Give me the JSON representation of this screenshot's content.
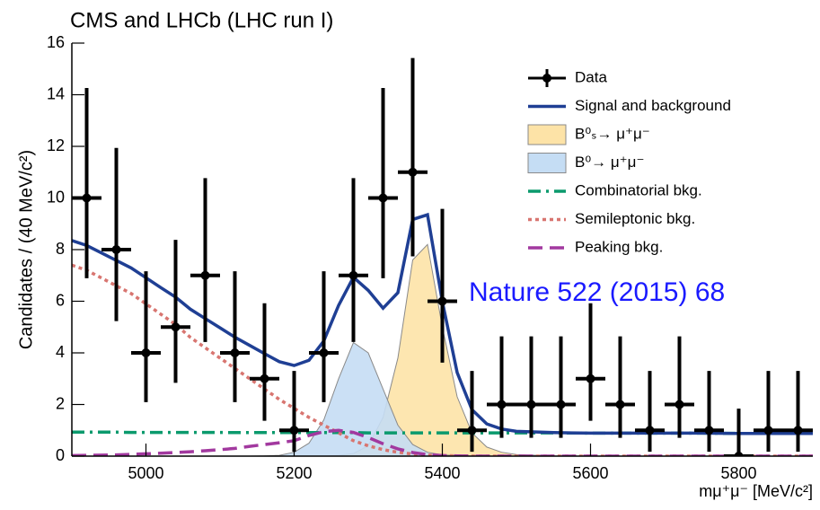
{
  "chart_data": {
    "type": "line",
    "title": "CMS and LHCb (LHC run I)",
    "annotation": "Nature 522 (2015) 68",
    "x_label": "mμ⁺μ⁻ [MeV/c²]",
    "y_label": "Candidates / (40 MeV/c²)",
    "xlim": [
      4900,
      5900
    ],
    "xticks": [
      5000,
      5200,
      5400,
      5600,
      5800
    ],
    "ylim": [
      0,
      16
    ],
    "yticks": [
      0,
      2,
      4,
      6,
      8,
      10,
      12,
      14,
      16
    ],
    "legend": "upper right",
    "data": {
      "name": "Data",
      "color": "#000000",
      "xerr": 20,
      "x": [
        4920,
        4960,
        5000,
        5040,
        5080,
        5120,
        5160,
        5200,
        5240,
        5280,
        5320,
        5360,
        5400,
        5440,
        5480,
        5520,
        5560,
        5600,
        5640,
        5680,
        5720,
        5760,
        5800,
        5840,
        5880
      ],
      "values": [
        10,
        8,
        4,
        5,
        7,
        4,
        3,
        1,
        4,
        7,
        10,
        11,
        6,
        1,
        2,
        2,
        2,
        3,
        2,
        1,
        2,
        1,
        0,
        1,
        1
      ],
      "err_low": [
        3.11,
        2.77,
        1.91,
        2.16,
        2.58,
        1.91,
        1.63,
        0.83,
        1.91,
        2.58,
        3.11,
        3.26,
        2.38,
        0.83,
        1.29,
        1.29,
        1.29,
        1.63,
        1.29,
        0.83,
        1.29,
        0.83,
        0,
        0.83,
        0.83
      ],
      "err_high": [
        4.26,
        3.94,
        3.16,
        3.38,
        3.77,
        3.16,
        2.92,
        2.3,
        3.16,
        3.77,
        4.26,
        4.42,
        3.58,
        2.3,
        2.64,
        2.64,
        2.64,
        2.92,
        2.64,
        2.3,
        2.64,
        2.3,
        1.84,
        2.3,
        2.3
      ]
    },
    "x": [
      4900,
      4920,
      4940,
      4960,
      4980,
      5000,
      5020,
      5040,
      5060,
      5080,
      5100,
      5120,
      5140,
      5160,
      5180,
      5200,
      5220,
      5240,
      5260,
      5280,
      5300,
      5320,
      5340,
      5360,
      5380,
      5400,
      5420,
      5440,
      5460,
      5480,
      5500,
      5550,
      5600,
      5650,
      5700,
      5750,
      5800,
      5850,
      5900
    ],
    "series": [
      {
        "name": "Signal and background",
        "kind": "line",
        "style": "solid",
        "color": "#1f3f94",
        "values": [
          8.35,
          8.16,
          7.87,
          7.58,
          7.29,
          6.91,
          6.53,
          6.16,
          5.69,
          5.33,
          4.97,
          4.61,
          4.29,
          3.97,
          3.66,
          3.51,
          3.71,
          4.46,
          5.84,
          6.93,
          6.42,
          5.73,
          6.33,
          9.17,
          9.35,
          5.99,
          3.24,
          1.8,
          1.25,
          1.05,
          0.96,
          0.91,
          0.89,
          0.89,
          0.89,
          0.89,
          0.88,
          0.88,
          0.88
        ]
      },
      {
        "name": "B⁰ₛ→ μ⁺μ⁻",
        "kind": "area",
        "color": "#fde3a7",
        "values": [
          0,
          0,
          0,
          0,
          0,
          0,
          0,
          0,
          0,
          0,
          0,
          0,
          0,
          0,
          0,
          0,
          0,
          0,
          0.03,
          0.1,
          0.4,
          1.5,
          3.8,
          7.6,
          8.2,
          5.0,
          2.3,
          0.9,
          0.35,
          0.15,
          0.06,
          0.01,
          0,
          0,
          0,
          0,
          0,
          0,
          0
        ]
      },
      {
        "name": "B⁰→ μ⁺μ⁻",
        "kind": "area",
        "color": "#c5ddf4",
        "values": [
          0,
          0,
          0,
          0,
          0,
          0,
          0,
          0,
          0,
          0,
          0,
          0,
          0,
          0.01,
          0.03,
          0.15,
          0.5,
          1.4,
          3.0,
          4.4,
          4.0,
          2.6,
          1.2,
          0.45,
          0.15,
          0.05,
          0.02,
          0,
          0,
          0,
          0,
          0,
          0,
          0,
          0,
          0,
          0,
          0,
          0
        ]
      },
      {
        "name": "Combinatorial bkg.",
        "kind": "line",
        "style": "dashdot",
        "color": "#0b9a6d",
        "values": [
          0.93,
          0.93,
          0.93,
          0.93,
          0.92,
          0.92,
          0.92,
          0.92,
          0.92,
          0.92,
          0.92,
          0.91,
          0.91,
          0.91,
          0.91,
          0.91,
          0.91,
          0.91,
          0.91,
          0.91,
          0.9,
          0.9,
          0.9,
          0.9,
          0.9,
          0.9,
          0.9,
          0.9,
          0.9,
          0.9,
          0.9,
          0.9,
          0.89,
          0.89,
          0.89,
          0.89,
          0.88,
          0.88,
          0.88
        ]
      },
      {
        "name": "Semileptonic bkg.",
        "kind": "line",
        "style": "dotted",
        "color": "#d87570",
        "values": [
          7.4,
          7.2,
          6.9,
          6.6,
          6.3,
          5.9,
          5.5,
          5.1,
          4.6,
          4.2,
          3.8,
          3.4,
          3.0,
          2.6,
          2.2,
          1.85,
          1.5,
          1.2,
          0.9,
          0.6,
          0.4,
          0.25,
          0.15,
          0.08,
          0.04,
          0.02,
          0.01,
          0,
          0,
          0,
          0,
          0,
          0,
          0,
          0,
          0,
          0,
          0,
          0
        ]
      },
      {
        "name": "Peaking bkg.",
        "kind": "line",
        "style": "dashed",
        "color": "#a2399f",
        "values": [
          0.02,
          0.03,
          0.04,
          0.05,
          0.07,
          0.09,
          0.11,
          0.14,
          0.17,
          0.21,
          0.25,
          0.3,
          0.38,
          0.45,
          0.52,
          0.6,
          0.8,
          0.95,
          1.0,
          0.92,
          0.72,
          0.48,
          0.28,
          0.14,
          0.06,
          0.02,
          0.01,
          0,
          0,
          0,
          0,
          0,
          0,
          0,
          0,
          0,
          0,
          0,
          0
        ]
      }
    ]
  }
}
